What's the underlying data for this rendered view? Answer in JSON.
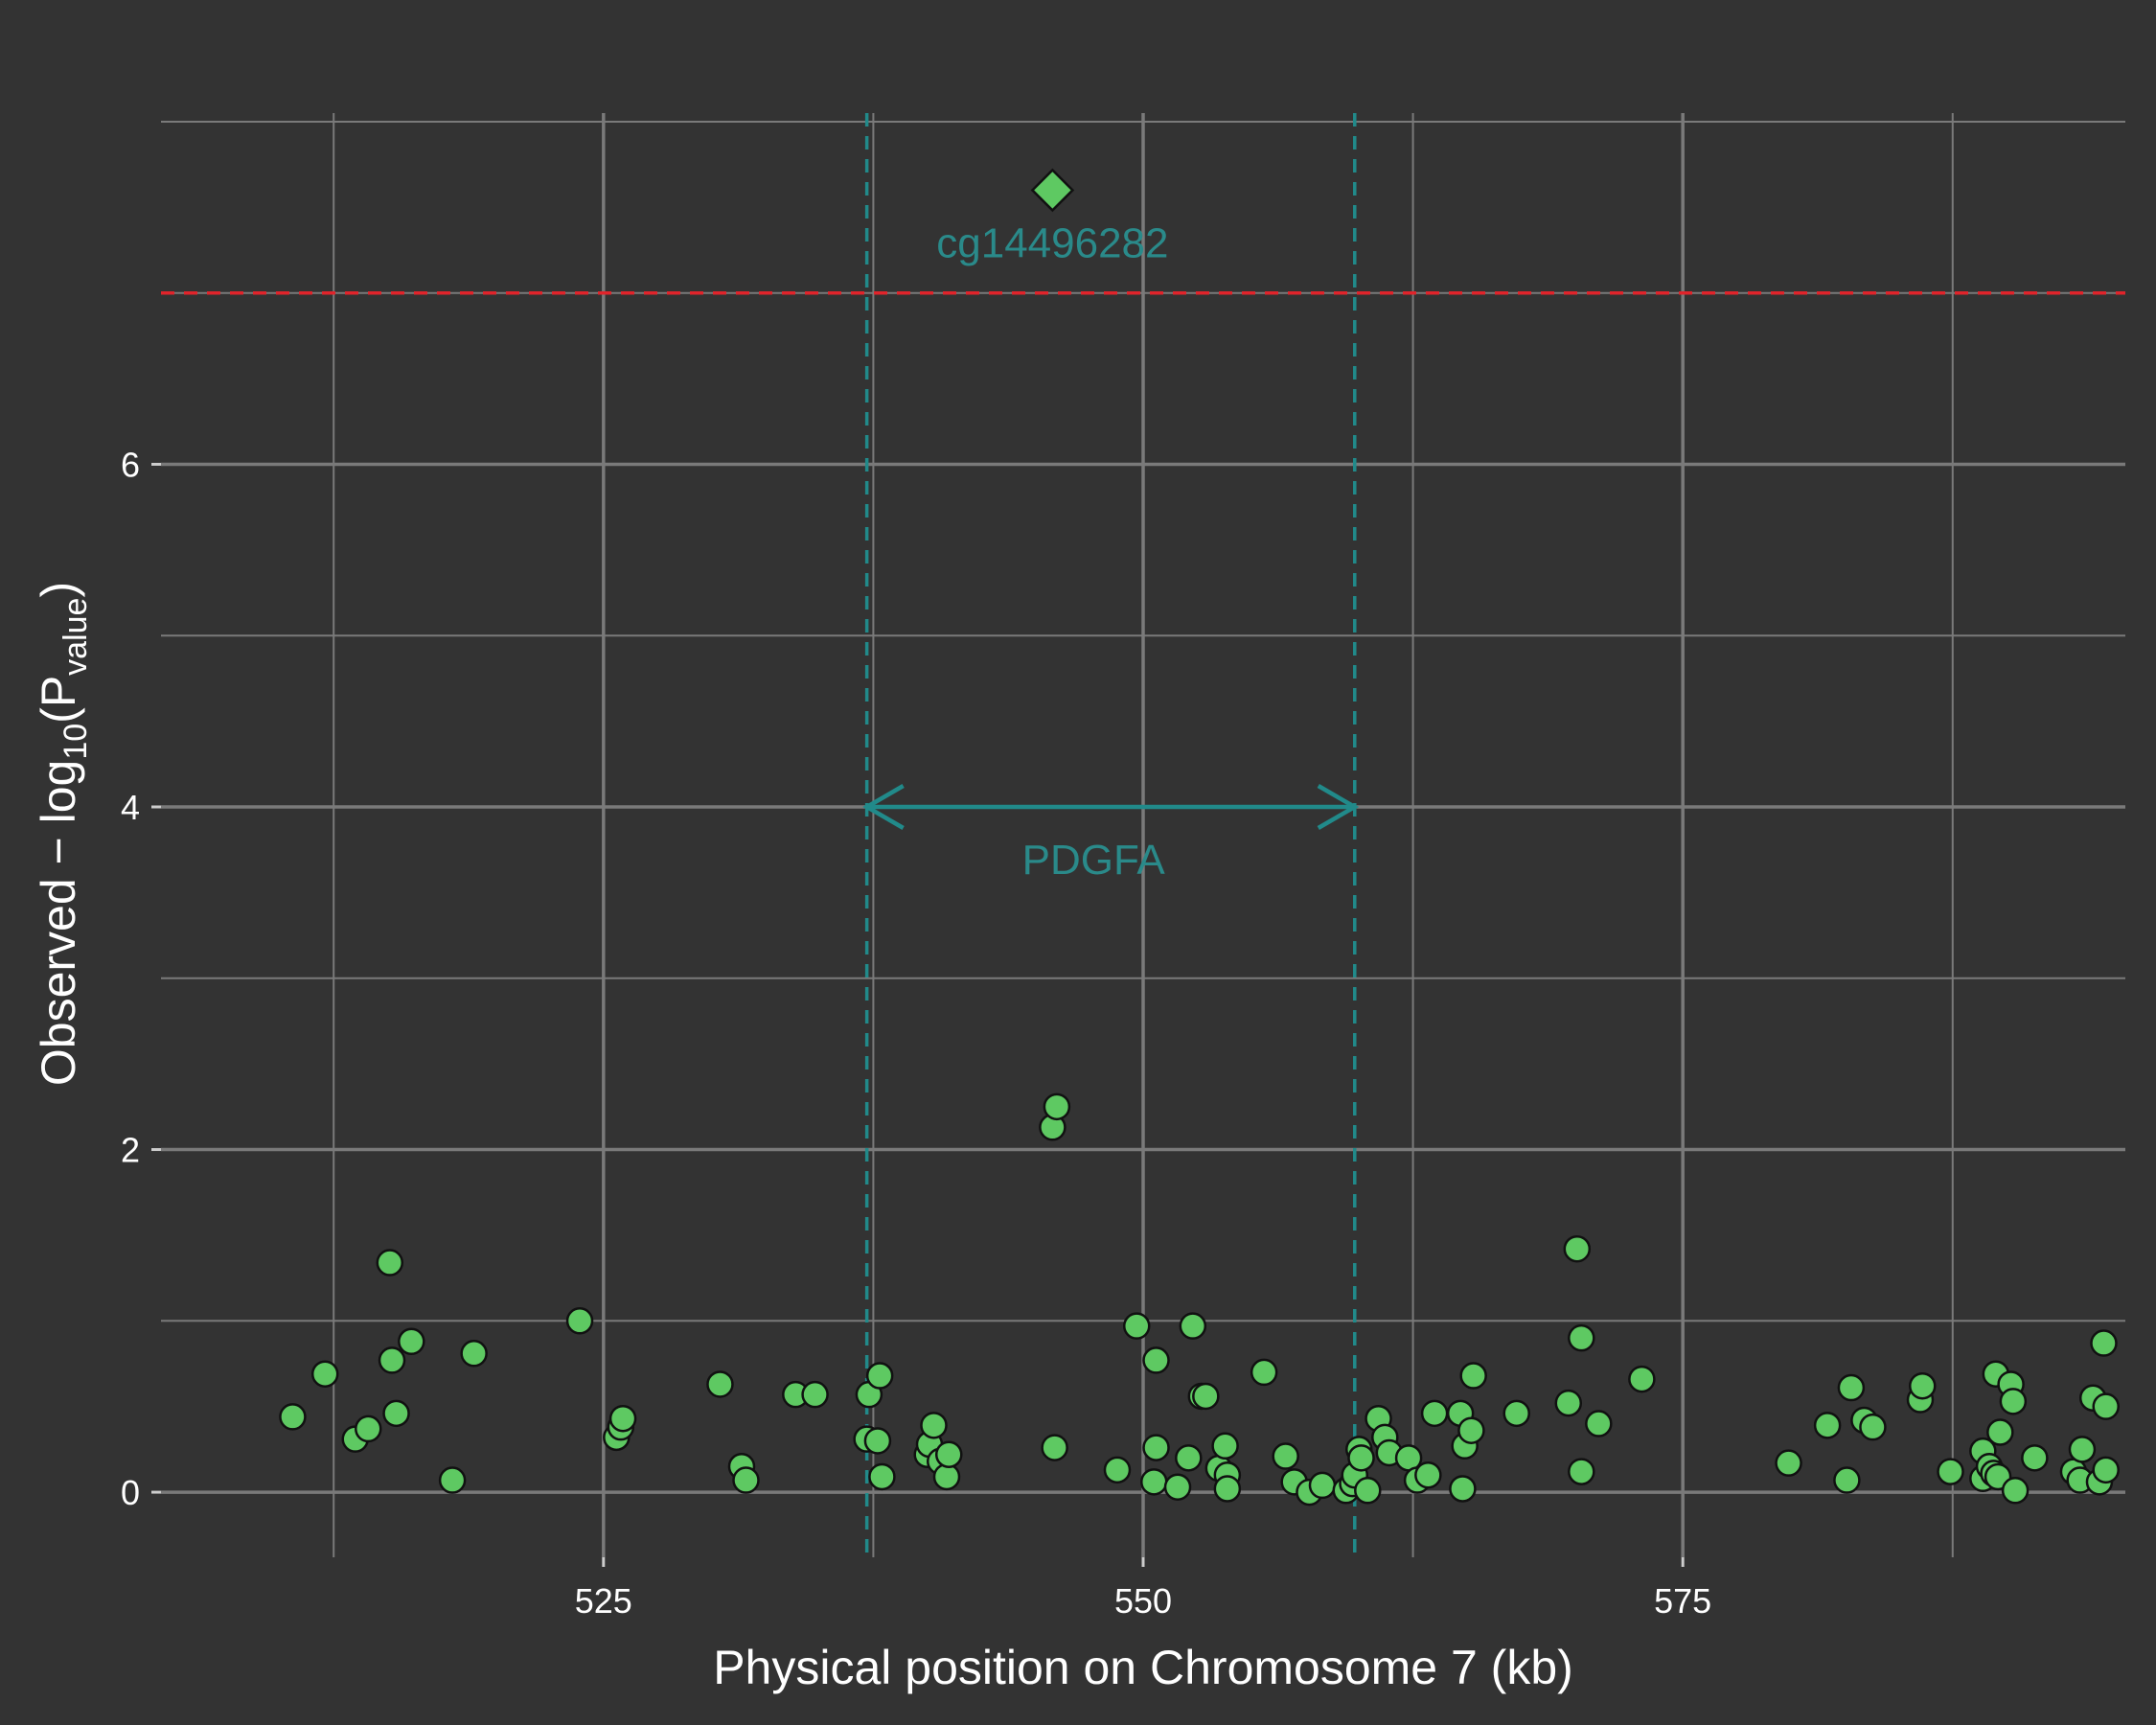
{
  "chart_data": {
    "type": "scatter",
    "xlabel": "Physical position on Chromosome 7 (kb)",
    "ylabel": {
      "prefix": "Observed − log",
      "base": "10",
      "open": "(P",
      "sub": "value",
      "close": ")"
    },
    "xlim": [
      504.5,
      595.5
    ],
    "ylim": [
      -0.38,
      8.05
    ],
    "x_ticks": [
      525,
      550,
      575
    ],
    "y_ticks": [
      0,
      2,
      4,
      6
    ],
    "grid": true,
    "colors": {
      "background": "#333333",
      "grid": "#7a7a7a",
      "point": "#5ec962",
      "threshold": "#e0242b",
      "gene": "#218a8a"
    },
    "threshold_line": 7,
    "gene": {
      "name": "PDGFA",
      "start": 537.2,
      "end": 559.8,
      "arrow_y": 4.0
    },
    "lead_snp": {
      "label": "cg14496282",
      "x": 545.8,
      "y": 7.6
    },
    "points": [
      [
        510.6,
        0.44
      ],
      [
        512.1,
        0.69
      ],
      [
        513.5,
        0.31
      ],
      [
        514.1,
        0.37
      ],
      [
        515.1,
        1.34
      ],
      [
        515.2,
        0.77
      ],
      [
        515.4,
        0.46
      ],
      [
        516.1,
        0.88
      ],
      [
        518.0,
        0.07
      ],
      [
        519.0,
        0.81
      ],
      [
        523.9,
        1.0
      ],
      [
        525.6,
        0.32
      ],
      [
        525.8,
        0.38
      ],
      [
        525.9,
        0.43
      ],
      [
        530.4,
        0.63
      ],
      [
        531.4,
        0.15
      ],
      [
        531.6,
        0.07
      ],
      [
        533.9,
        0.57
      ],
      [
        534.8,
        0.57
      ],
      [
        537.2,
        0.31
      ],
      [
        537.3,
        0.57
      ],
      [
        537.7,
        0.3
      ],
      [
        537.8,
        0.68
      ],
      [
        537.9,
        0.09
      ],
      [
        540.0,
        0.22
      ],
      [
        540.1,
        0.28
      ],
      [
        540.3,
        0.39
      ],
      [
        540.6,
        0.18
      ],
      [
        540.9,
        0.09
      ],
      [
        541.0,
        0.22
      ],
      [
        545.8,
        2.13
      ],
      [
        546.0,
        2.25
      ],
      [
        545.9,
        0.26
      ],
      [
        548.8,
        0.13
      ],
      [
        549.7,
        0.97
      ],
      [
        550.6,
        0.26
      ],
      [
        550.5,
        0.06
      ],
      [
        550.6,
        0.77
      ],
      [
        551.6,
        0.03
      ],
      [
        552.1,
        0.2
      ],
      [
        552.3,
        0.97
      ],
      [
        552.7,
        0.56
      ],
      [
        552.9,
        0.56
      ],
      [
        553.5,
        0.14
      ],
      [
        553.8,
        0.27
      ],
      [
        553.9,
        0.1
      ],
      [
        553.9,
        0.02
      ],
      [
        555.6,
        0.7
      ],
      [
        556.6,
        0.21
      ],
      [
        557.0,
        0.06
      ],
      [
        557.7,
        0.0
      ],
      [
        558.3,
        0.04
      ],
      [
        559.4,
        0.01
      ],
      [
        559.7,
        0.05
      ],
      [
        559.8,
        0.1
      ],
      [
        560.0,
        0.25
      ],
      [
        560.1,
        0.2
      ],
      [
        560.4,
        0.01
      ],
      [
        560.9,
        0.43
      ],
      [
        561.2,
        0.32
      ],
      [
        561.4,
        0.23
      ],
      [
        562.3,
        0.2
      ],
      [
        562.7,
        0.07
      ],
      [
        563.2,
        0.1
      ],
      [
        563.5,
        0.46
      ],
      [
        564.7,
        0.46
      ],
      [
        564.9,
        0.27
      ],
      [
        564.8,
        0.02
      ],
      [
        565.2,
        0.36
      ],
      [
        565.3,
        0.68
      ],
      [
        567.3,
        0.46
      ],
      [
        569.7,
        0.52
      ],
      [
        570.1,
        1.42
      ],
      [
        570.3,
        0.9
      ],
      [
        570.3,
        0.12
      ],
      [
        571.1,
        0.4
      ],
      [
        573.1,
        0.66
      ],
      [
        579.9,
        0.17
      ],
      [
        581.7,
        0.39
      ],
      [
        582.6,
        0.07
      ],
      [
        582.8,
        0.61
      ],
      [
        583.4,
        0.42
      ],
      [
        583.8,
        0.38
      ],
      [
        586.0,
        0.54
      ],
      [
        586.1,
        0.62
      ],
      [
        587.4,
        0.12
      ],
      [
        588.9,
        0.24
      ],
      [
        588.9,
        0.08
      ],
      [
        589.2,
        0.15
      ],
      [
        589.4,
        0.11
      ],
      [
        589.5,
        0.69
      ],
      [
        589.6,
        0.09
      ],
      [
        589.7,
        0.35
      ],
      [
        590.2,
        0.63
      ],
      [
        590.3,
        0.53
      ],
      [
        590.4,
        0.01
      ],
      [
        591.3,
        0.2
      ],
      [
        593.1,
        0.12
      ],
      [
        593.4,
        0.07
      ],
      [
        593.5,
        0.25
      ],
      [
        594.0,
        0.55
      ],
      [
        594.3,
        0.06
      ],
      [
        594.5,
        0.87
      ],
      [
        594.6,
        0.5
      ],
      [
        594.6,
        0.13
      ]
    ]
  }
}
